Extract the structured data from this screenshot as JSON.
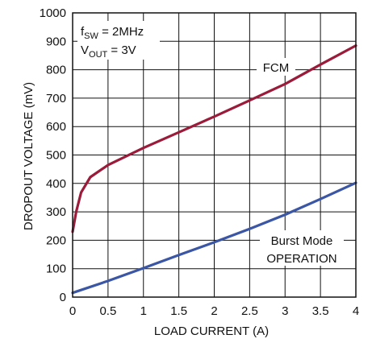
{
  "chart_data": {
    "type": "line",
    "xlabel": "LOAD CURRENT (A)",
    "ylabel": "DROPOUT VOLTAGE (mV)",
    "xlim": [
      0,
      4
    ],
    "ylim": [
      0,
      1000
    ],
    "xticks": [
      "0",
      "0.5",
      "1",
      "1.5",
      "2",
      "2.5",
      "3",
      "3.5",
      "4"
    ],
    "yticks": [
      "0",
      "100",
      "200",
      "300",
      "400",
      "500",
      "600",
      "700",
      "800",
      "900",
      "1000"
    ],
    "grid": true,
    "conditions": {
      "line1_main": "f",
      "line1_sub": "SW",
      "line1_rest": " = 2MHz",
      "line2_main": "V",
      "line2_sub": "OUT",
      "line2_rest": " = 3V"
    },
    "series": [
      {
        "name": "FCM",
        "color": "#9b1b3a",
        "x": [
          0,
          0.05,
          0.12,
          0.25,
          0.5,
          1.0,
          1.5,
          2.0,
          2.5,
          3.0,
          3.5,
          4.0
        ],
        "y": [
          230,
          300,
          368,
          422,
          465,
          525,
          580,
          635,
          692,
          750,
          818,
          885
        ]
      },
      {
        "name": "Burst Mode OPERATION",
        "label_line1": "Burst Mode",
        "label_line2": "OPERATION",
        "color": "#3a56a5",
        "x": [
          0,
          0.5,
          1.0,
          1.5,
          2.0,
          2.5,
          3.0,
          3.5,
          4.0
        ],
        "y": [
          15,
          57,
          102,
          148,
          193,
          240,
          290,
          345,
          402
        ]
      }
    ]
  }
}
